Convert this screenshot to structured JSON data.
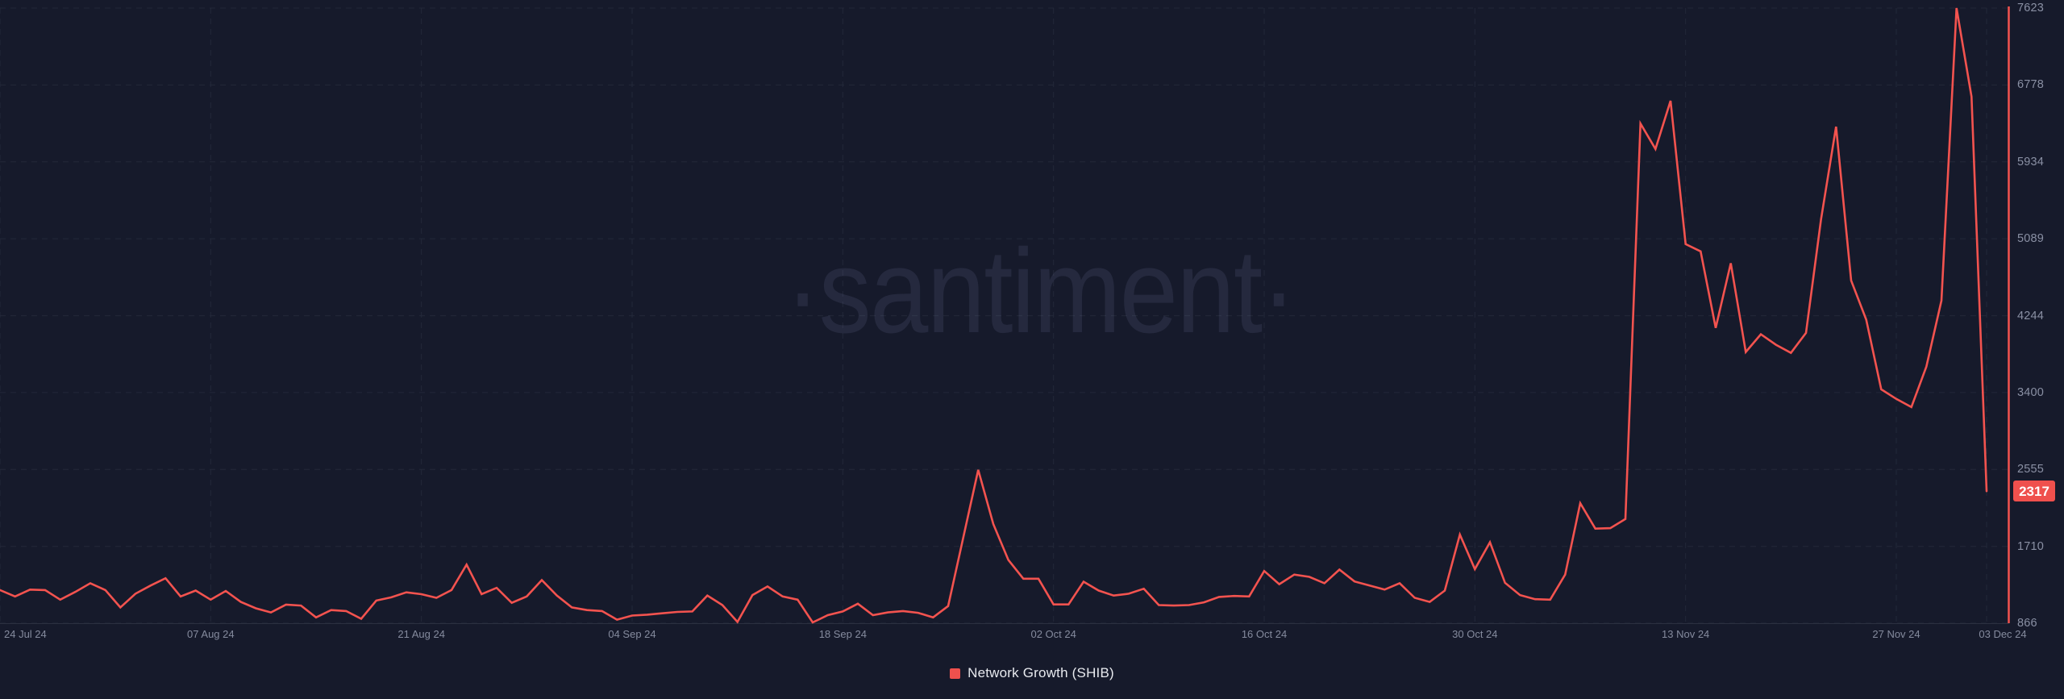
{
  "watermark": {
    "text": "·santiment·"
  },
  "legend": {
    "label": "Network Growth (SHIB)",
    "swatch_color": "#ef504d"
  },
  "badge": {
    "value": "2317",
    "bg": "#ef504d",
    "text_color": "#ffffff"
  },
  "colors": {
    "background": "#161a2b",
    "line": "#f3534f",
    "axis_line": "#f3534f",
    "grid": "#232839",
    "plot_boundary": "#2b3040",
    "y_tick_label": "#8a90a4",
    "x_tick_label": "#858b9e",
    "legend_text": "#e8eaef",
    "watermark": "rgba(136,146,190,0.13)"
  },
  "chart_data": {
    "type": "line",
    "title": "",
    "watermark": "·santiment·",
    "grid": "dashed",
    "legend_position": "bottom-center",
    "ylim": [
      866,
      7623
    ],
    "y_ticks": [
      7623,
      6778,
      5934,
      5089,
      4244,
      3400,
      2555,
      1710,
      866
    ],
    "x_ticks": [
      {
        "label": "24 Jul 24",
        "day": 0
      },
      {
        "label": "07 Aug 24",
        "day": 14
      },
      {
        "label": "21 Aug 24",
        "day": 28
      },
      {
        "label": "04 Sep 24",
        "day": 42
      },
      {
        "label": "18 Sep 24",
        "day": 56
      },
      {
        "label": "02 Oct 24",
        "day": 70
      },
      {
        "label": "16 Oct 24",
        "day": 84
      },
      {
        "label": "30 Oct 24",
        "day": 98
      },
      {
        "label": "13 Nov 24",
        "day": 112
      },
      {
        "label": "27 Nov 24",
        "day": 126
      },
      {
        "label": "03 Dec 24",
        "day": 132
      }
    ],
    "latest_value": 2317,
    "interval": "1d",
    "start_date": "2024-07-24",
    "end_date": "2024-12-03",
    "series": [
      {
        "name": "Network Growth (SHIB)",
        "color": "#f3534f",
        "dates": [
          "2024-07-24",
          "2024-07-25",
          "2024-07-26",
          "2024-07-27",
          "2024-07-28",
          "2024-07-29",
          "2024-07-30",
          "2024-07-31",
          "2024-08-01",
          "2024-08-02",
          "2024-08-03",
          "2024-08-04",
          "2024-08-05",
          "2024-08-06",
          "2024-08-07",
          "2024-08-08",
          "2024-08-09",
          "2024-08-10",
          "2024-08-11",
          "2024-08-12",
          "2024-08-13",
          "2024-08-14",
          "2024-08-15",
          "2024-08-16",
          "2024-08-17",
          "2024-08-18",
          "2024-08-19",
          "2024-08-20",
          "2024-08-21",
          "2024-08-22",
          "2024-08-23",
          "2024-08-24",
          "2024-08-25",
          "2024-08-26",
          "2024-08-27",
          "2024-08-28",
          "2024-08-29",
          "2024-08-30",
          "2024-08-31",
          "2024-09-01",
          "2024-09-02",
          "2024-09-03",
          "2024-09-04",
          "2024-09-05",
          "2024-09-06",
          "2024-09-07",
          "2024-09-08",
          "2024-09-09",
          "2024-09-10",
          "2024-09-11",
          "2024-09-12",
          "2024-09-13",
          "2024-09-14",
          "2024-09-15",
          "2024-09-16",
          "2024-09-17",
          "2024-09-18",
          "2024-09-19",
          "2024-09-20",
          "2024-09-21",
          "2024-09-22",
          "2024-09-23",
          "2024-09-24",
          "2024-09-25",
          "2024-09-26",
          "2024-09-27",
          "2024-09-28",
          "2024-09-29",
          "2024-09-30",
          "2024-10-01",
          "2024-10-02",
          "2024-10-03",
          "2024-10-04",
          "2024-10-05",
          "2024-10-06",
          "2024-10-07",
          "2024-10-08",
          "2024-10-09",
          "2024-10-10",
          "2024-10-11",
          "2024-10-12",
          "2024-10-13",
          "2024-10-14",
          "2024-10-15",
          "2024-10-16",
          "2024-10-17",
          "2024-10-18",
          "2024-10-19",
          "2024-10-20",
          "2024-10-21",
          "2024-10-22",
          "2024-10-23",
          "2024-10-24",
          "2024-10-25",
          "2024-10-26",
          "2024-10-27",
          "2024-10-28",
          "2024-10-29",
          "2024-10-30",
          "2024-10-31",
          "2024-11-01",
          "2024-11-02",
          "2024-11-03",
          "2024-11-04",
          "2024-11-05",
          "2024-11-06",
          "2024-11-07",
          "2024-11-08",
          "2024-11-09",
          "2024-11-10",
          "2024-11-11",
          "2024-11-12",
          "2024-11-13",
          "2024-11-14",
          "2024-11-15",
          "2024-11-16",
          "2024-11-17",
          "2024-11-18",
          "2024-11-19",
          "2024-11-20",
          "2024-11-21",
          "2024-11-22",
          "2024-11-23",
          "2024-11-24",
          "2024-11-25",
          "2024-11-26",
          "2024-11-27",
          "2024-11-28",
          "2024-11-29",
          "2024-11-30",
          "2024-12-01",
          "2024-12-02",
          "2024-12-03"
        ],
        "values": [
          1230,
          1160,
          1235,
          1230,
          1125,
          1210,
          1305,
          1230,
          1040,
          1190,
          1280,
          1360,
          1160,
          1225,
          1125,
          1220,
          1100,
          1030,
          985,
          1070,
          1060,
          930,
          1010,
          1000,
          915,
          1115,
          1150,
          1205,
          1185,
          1145,
          1230,
          1510,
          1185,
          1255,
          1090,
          1160,
          1340,
          1170,
          1040,
          1010,
          1000,
          905,
          950,
          960,
          975,
          990,
          995,
          1170,
          1065,
          880,
          1175,
          1270,
          1160,
          1125,
          875,
          955,
          995,
          1080,
          955,
          985,
          1000,
          980,
          930,
          1055,
          1805,
          2550,
          1955,
          1560,
          1355,
          1355,
          1072,
          1072,
          1322,
          1225,
          1170,
          1190,
          1245,
          1065,
          1060,
          1065,
          1095,
          1155,
          1165,
          1160,
          1440,
          1295,
          1400,
          1375,
          1305,
          1455,
          1325,
          1280,
          1235,
          1305,
          1145,
          1100,
          1225,
          1840,
          1460,
          1755,
          1310,
          1175,
          1130,
          1125,
          1400,
          2185,
          1905,
          1910,
          2010,
          6355,
          6075,
          6605,
          5030,
          4950,
          4110,
          4820,
          3845,
          4040,
          3925,
          3835,
          4055,
          5305,
          6320,
          4630,
          4200,
          3435,
          3330,
          3240,
          3685,
          4410,
          7623,
          6650,
          2317
        ]
      }
    ]
  }
}
